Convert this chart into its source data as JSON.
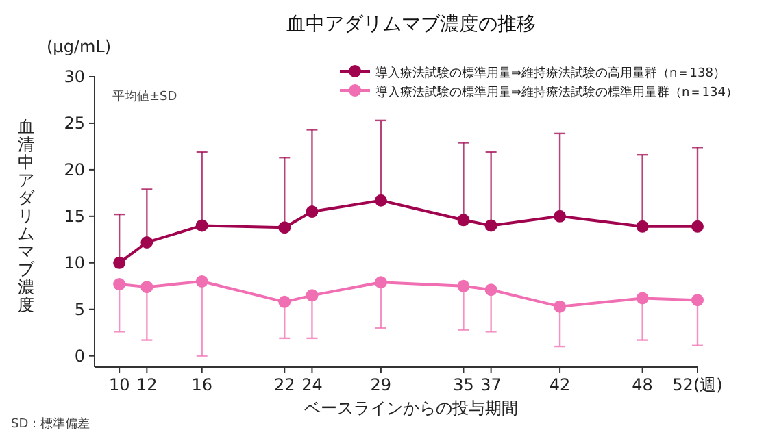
{
  "chart_data": {
    "type": "line",
    "title": "血中アダリムマブ濃度の推移",
    "xlabel": "ベースラインからの投与期間",
    "ylabel": "血清中アダリムマブ濃度",
    "annotations": [
      "平均値±SD",
      "SD：標準偏差",
      "(μg/mL)"
    ],
    "x": [
      10,
      12,
      16,
      22,
      24,
      29,
      35,
      37,
      42,
      48,
      52
    ],
    "xlim": [
      8.2,
      52
    ],
    "xticks": [
      10,
      12,
      16,
      22,
      24,
      29,
      35,
      37,
      42,
      48,
      {
        "value": 52,
        "label": "52(週)"
      }
    ],
    "ylim": [
      -1.2,
      30
    ],
    "yticks": [
      0,
      5,
      10,
      15,
      20,
      25,
      30
    ],
    "grid": false,
    "legend": "top right",
    "marker": "circle",
    "line_style": "solid",
    "series": [
      {
        "name": "導入療法試験の標準用量⇒維持療法試験の高用量群（n＝138）",
        "color": "#a0044f",
        "values": [
          10.0,
          12.2,
          14.0,
          13.8,
          15.5,
          16.7,
          14.6,
          14.0,
          15.0,
          13.9,
          13.9
        ],
        "errors": [
          [
            10.0,
            15.2
          ],
          [
            12.2,
            17.9
          ],
          [
            14.0,
            21.9
          ],
          [
            13.8,
            21.3
          ],
          [
            15.5,
            24.3
          ],
          [
            16.7,
            25.3
          ],
          [
            14.6,
            22.9
          ],
          [
            14.0,
            21.9
          ],
          [
            15.0,
            23.9
          ],
          [
            13.9,
            21.6
          ],
          [
            13.9,
            22.4
          ]
        ]
      },
      {
        "name": "導入療法試験の標準用量⇒維持療法試験の標準用量群（n＝134）",
        "color": "#f06eb2",
        "values": [
          7.7,
          7.4,
          8.0,
          5.8,
          6.5,
          7.9,
          7.5,
          7.1,
          5.3,
          6.2,
          6.0
        ],
        "errors": [
          [
            2.6,
            7.7
          ],
          [
            1.7,
            7.4
          ],
          [
            0,
            8.0
          ],
          [
            1.9,
            5.8
          ],
          [
            1.9,
            6.5
          ],
          [
            3.0,
            7.9
          ],
          [
            2.8,
            7.5
          ],
          [
            2.6,
            7.1
          ],
          [
            1.0,
            5.3
          ],
          [
            1.7,
            6.2
          ],
          [
            1.1,
            6.0
          ]
        ]
      }
    ]
  }
}
